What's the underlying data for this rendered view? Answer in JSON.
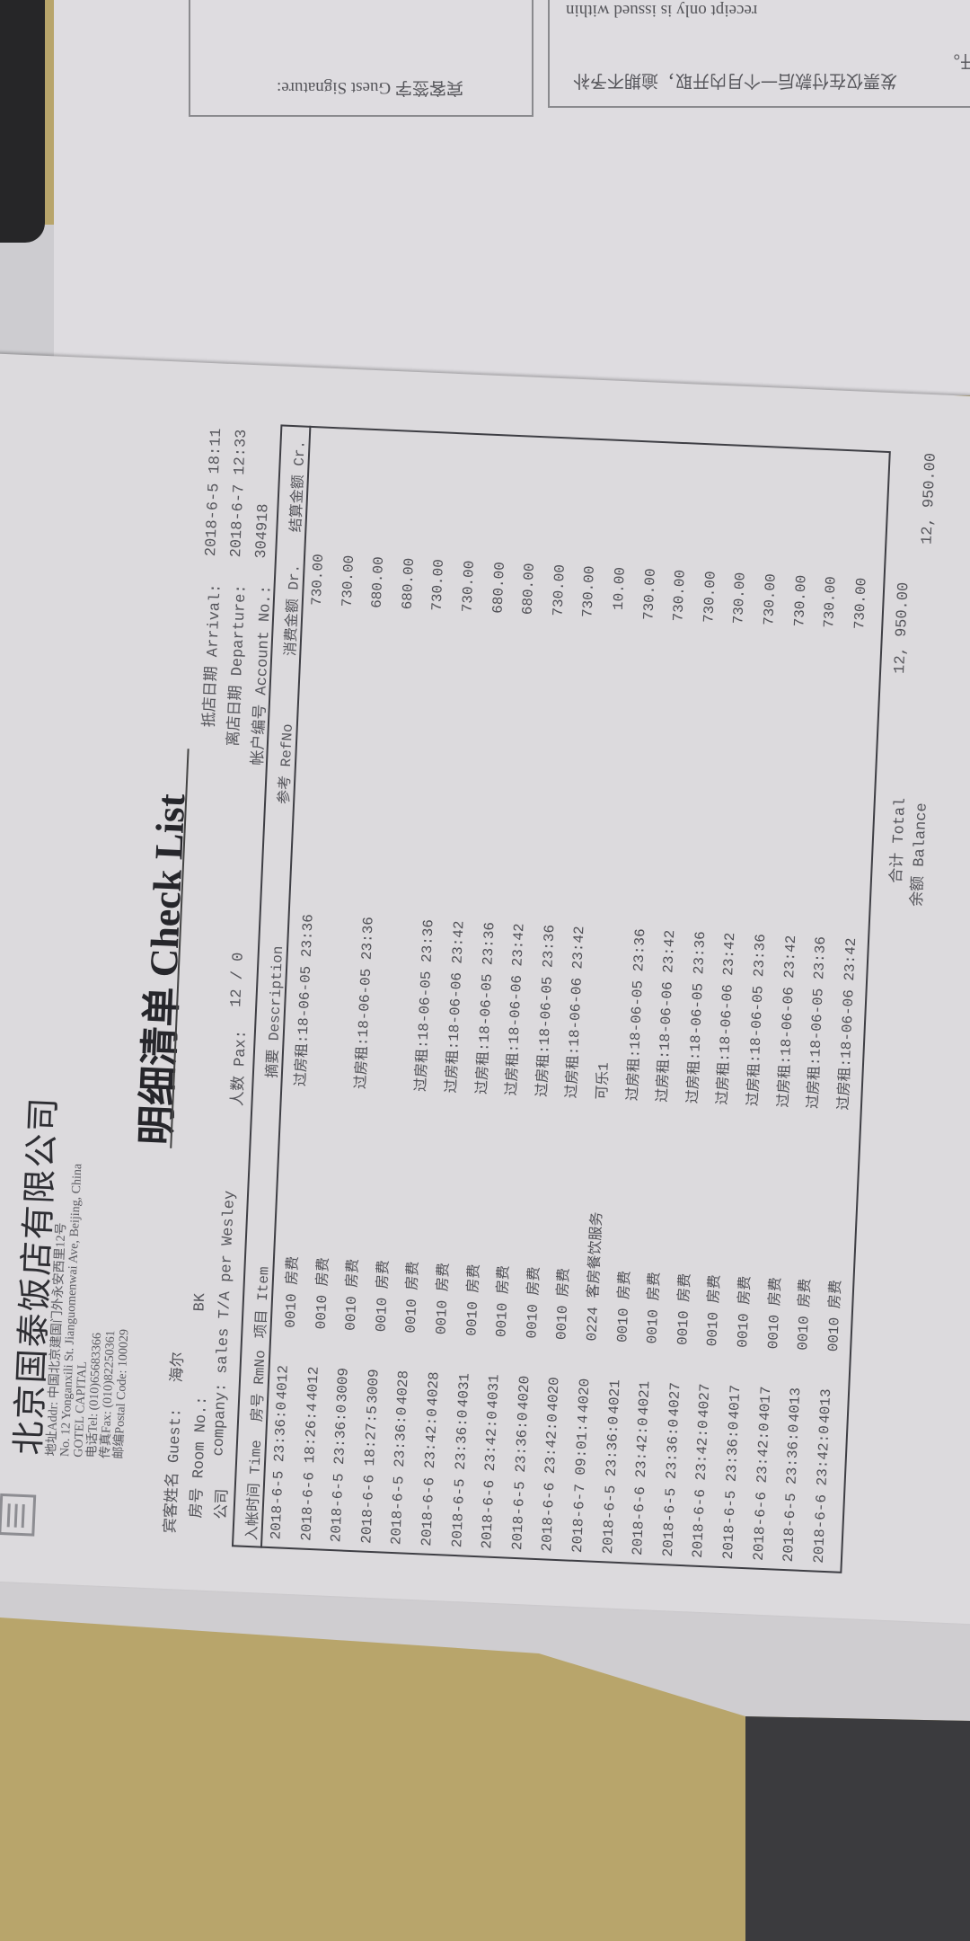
{
  "colors": {
    "paper": "#dcdadd",
    "desk": "#b8a56b",
    "ink": "#4e4e54",
    "dark_surface": "#3b3b3e"
  },
  "stub": {
    "signature_label": "宾客签字 Guest Signature:",
    "invoice_note_cn": "发票仅在付款后一个月内开取，逾期不予补",
    "invoice_note_cn_cont": "开。",
    "invoice_note_en": "receipt only is issued within"
  },
  "document": {
    "logo_icon": "hotel-seal-logo",
    "hotel_name": "北京国泰饭店有限公司",
    "address_lines": [
      "地址Addr:  中国北京建国门外永安西里12号",
      "No. 12 Yonganxili St. Jianguomenwai Ave, Beijing, China",
      "GOTEL CAPITAL",
      "电话Tel:  (010)65683366",
      "传真Fax:  (010)82250361",
      "邮编Postal Code: 100029"
    ],
    "title": "明细清单 Check List",
    "guest_label": "宾客姓名 Guest:",
    "guest_value": "海尔",
    "room_label": "房号 Room No.:",
    "room_value": "BK",
    "company_label": "公司",
    "company_value": "company: sales T/A per Wesley",
    "pax_label": "人数 Pax:",
    "pax_value": "12 / 0",
    "arrival_label": "抵店日期 Arrival:",
    "arrival_value": "2018-6-5 18:11",
    "departure_label": "离店日期 Departure:",
    "departure_value": "2018-6-7 12:33",
    "account_label": "帐户编号 Account No.:",
    "account_value": "304918"
  },
  "table": {
    "headers": {
      "time": "入帐时间 Time",
      "room": "房号 RmNo",
      "item": "项目 Item",
      "description": "摘要 Description",
      "ref": "参考 RefNo",
      "dr": "消费金额 Dr.",
      "cr": "结算金额 Cr."
    },
    "rows": [
      {
        "time": "2018-6-5 23:36:0",
        "room": "4012",
        "item": "0010 房费",
        "description": "过房租:18-06-05 23:36",
        "dr": "730.00"
      },
      {
        "time": "2018-6-6 18:26:4",
        "room": "4012",
        "item": "0010 房费",
        "description": "",
        "dr": "730.00"
      },
      {
        "time": "2018-6-5 23:36:0",
        "room": "3009",
        "item": "0010 房费",
        "description": "过房租:18-06-05 23:36",
        "dr": "680.00"
      },
      {
        "time": "2018-6-6 18:27:5",
        "room": "3009",
        "item": "0010 房费",
        "description": "",
        "dr": "680.00"
      },
      {
        "time": "2018-6-5 23:36:0",
        "room": "4028",
        "item": "0010 房费",
        "description": "过房租:18-06-05 23:36",
        "dr": "730.00"
      },
      {
        "time": "2018-6-6 23:42:0",
        "room": "4028",
        "item": "0010 房费",
        "description": "过房租:18-06-06 23:42",
        "dr": "730.00"
      },
      {
        "time": "2018-6-5 23:36:0",
        "room": "4031",
        "item": "0010 房费",
        "description": "过房租:18-06-05 23:36",
        "dr": "680.00"
      },
      {
        "time": "2018-6-6 23:42:0",
        "room": "4031",
        "item": "0010 房费",
        "description": "过房租:18-06-06 23:42",
        "dr": "680.00"
      },
      {
        "time": "2018-6-5 23:36:0",
        "room": "4020",
        "item": "0010 房费",
        "description": "过房租:18-06-05 23:36",
        "dr": "730.00"
      },
      {
        "time": "2018-6-6 23:42:0",
        "room": "4020",
        "item": "0010 房费",
        "description": "过房租:18-06-06 23:42",
        "dr": "730.00"
      },
      {
        "time": "2018-6-7 09:01:4",
        "room": "4020",
        "item": "0224 客房餐饮服务",
        "description": "可乐1",
        "dr": "10.00"
      },
      {
        "time": "2018-6-5 23:36:0",
        "room": "4021",
        "item": "0010 房费",
        "description": "过房租:18-06-05 23:36",
        "dr": "730.00"
      },
      {
        "time": "2018-6-6 23:42:0",
        "room": "4021",
        "item": "0010 房费",
        "description": "过房租:18-06-06 23:42",
        "dr": "730.00"
      },
      {
        "time": "2018-6-5 23:36:0",
        "room": "4027",
        "item": "0010 房费",
        "description": "过房租:18-06-05 23:36",
        "dr": "730.00"
      },
      {
        "time": "2018-6-6 23:42:0",
        "room": "4027",
        "item": "0010 房费",
        "description": "过房租:18-06-06 23:42",
        "dr": "730.00"
      },
      {
        "time": "2018-6-5 23:36:0",
        "room": "4017",
        "item": "0010 房费",
        "description": "过房租:18-06-05 23:36",
        "dr": "730.00"
      },
      {
        "time": "2018-6-6 23:42:0",
        "room": "4017",
        "item": "0010 房费",
        "description": "过房租:18-06-06 23:42",
        "dr": "730.00"
      },
      {
        "time": "2018-6-5 23:36:0",
        "room": "4013",
        "item": "0010 房费",
        "description": "过房租:18-06-05 23:36",
        "dr": "730.00"
      },
      {
        "time": "2018-6-6 23:42:0",
        "room": "4013",
        "item": "0010 房费",
        "description": "过房租:18-06-06 23:42",
        "dr": "730.00"
      }
    ]
  },
  "totals": {
    "total_label": "合计 Total",
    "total_value": "12, 950.00",
    "balance_label": "余额 Balance",
    "balance_value": "12, 950.00"
  }
}
